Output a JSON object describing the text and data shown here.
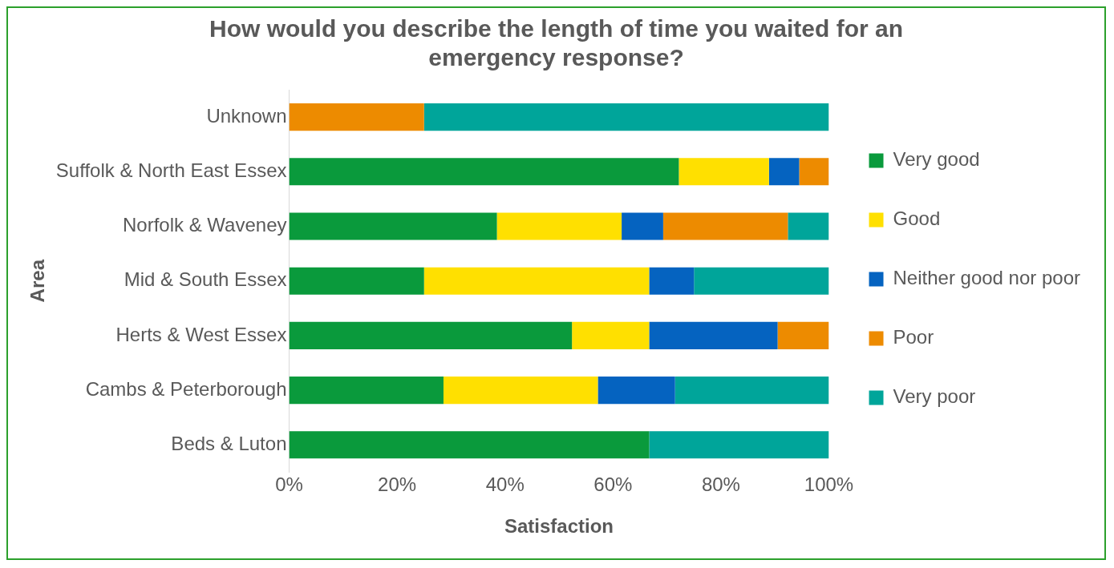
{
  "chart_data": {
    "type": "bar",
    "orientation": "horizontal",
    "stacked": true,
    "title": "How would you describe the length of time you waited for an emergency response?",
    "xlabel": "Satisfaction",
    "ylabel": "Area",
    "categories": [
      "Unknown",
      "Suffolk & North East Essex",
      "Norfolk & Waveney",
      "Mid & South Essex",
      "Herts & West Essex",
      "Cambs & Peterborough",
      "Beds & Luton"
    ],
    "series": [
      {
        "name": "Very good",
        "color": "#0a9a3c",
        "values": [
          null,
          72.2,
          38.5,
          25,
          52.4,
          28.6,
          66.7
        ]
      },
      {
        "name": "Good",
        "color": "#ffe000",
        "values": [
          null,
          16.7,
          23.1,
          41.7,
          14.3,
          28.6,
          null
        ]
      },
      {
        "name": "Neither good nor poor",
        "color": "#0563c0",
        "values": [
          null,
          5.6,
          7.7,
          8.3,
          23.8,
          14.3,
          null
        ]
      },
      {
        "name": "Poor",
        "color": "#ed8b00",
        "values": [
          25,
          5.5,
          23.1,
          null,
          9.5,
          null,
          null
        ]
      },
      {
        "name": "Very poor",
        "color": "#00a59a",
        "values": [
          75,
          null,
          7.6,
          25,
          null,
          28.5,
          33.3
        ]
      }
    ],
    "xlim": [
      0,
      100
    ],
    "xticks": [
      {
        "value": 0,
        "label": "0%"
      },
      {
        "value": 20,
        "label": "20%"
      },
      {
        "value": 40,
        "label": "40%"
      },
      {
        "value": 60,
        "label": "60%"
      },
      {
        "value": 80,
        "label": "80%"
      },
      {
        "value": 100,
        "label": "100%"
      }
    ],
    "grid": false,
    "legend": "right"
  }
}
